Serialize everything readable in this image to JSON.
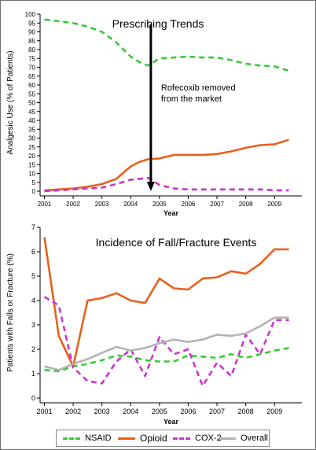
{
  "chart_data": [
    {
      "type": "line",
      "title": "Prescribing Trends",
      "xlabel": "Year",
      "ylabel": "Analgesic Use (% of Patients)",
      "ylim": [
        0,
        100
      ],
      "yticks": [
        0,
        5,
        10,
        15,
        20,
        25,
        30,
        35,
        40,
        45,
        50,
        55,
        60,
        65,
        70,
        75,
        80,
        85,
        90,
        95,
        100
      ],
      "xticks": [
        "2001",
        "2002",
        "2003",
        "2004",
        "2005",
        "2006",
        "2007",
        "2008",
        "2009"
      ],
      "annotation": {
        "text_line1": "Rofecoxib removed",
        "text_line2": "from  the market",
        "x": 2004.7
      },
      "series": [
        {
          "name": "NSAID",
          "color": "#33cc33",
          "style": "dashed",
          "x": [
            2001.0,
            2001.5,
            2002.0,
            2002.5,
            2003.0,
            2003.5,
            2004.0,
            2004.3,
            2004.6,
            2005.0,
            2005.5,
            2006.0,
            2006.5,
            2007.0,
            2007.5,
            2008.0,
            2008.5,
            2009.0,
            2009.5
          ],
          "y": [
            97,
            96,
            95,
            93,
            90,
            84,
            76,
            73,
            71,
            75,
            75.5,
            76,
            75.5,
            75.5,
            74,
            72,
            71,
            70.5,
            68
          ]
        },
        {
          "name": "Opioid",
          "color": "#e8601c",
          "style": "solid",
          "x": [
            2001.0,
            2001.5,
            2002.0,
            2002.5,
            2003.0,
            2003.5,
            2004.0,
            2004.3,
            2004.6,
            2005.0,
            2005.5,
            2006.0,
            2006.5,
            2007.0,
            2007.5,
            2008.0,
            2008.5,
            2009.0,
            2009.5
          ],
          "y": [
            0.5,
            1,
            1.5,
            2.5,
            4,
            7,
            14,
            16.5,
            18,
            18.5,
            20.5,
            20.5,
            20.5,
            21,
            22.5,
            24.5,
            26,
            26.5,
            29
          ]
        },
        {
          "name": "COX-2",
          "color": "#cc33cc",
          "style": "dashed",
          "x": [
            2001.0,
            2001.5,
            2002.0,
            2002.5,
            2003.0,
            2003.5,
            2004.0,
            2004.3,
            2004.6,
            2005.0,
            2005.5,
            2006.0,
            2006.5,
            2007.0,
            2007.5,
            2008.0,
            2008.5,
            2009.0,
            2009.5
          ],
          "y": [
            0,
            0.5,
            1,
            1.5,
            2,
            4,
            6.5,
            7,
            7.5,
            3.5,
            1.5,
            1,
            1,
            1,
            1,
            1,
            1,
            0.5,
            0.5
          ]
        }
      ]
    },
    {
      "type": "line",
      "title": "Incidence of Fall/Fracture Events",
      "xlabel": "Year",
      "ylabel": "Patients with Falls or Fracture (%)",
      "ylim": [
        0,
        7
      ],
      "yticks": [
        0,
        1,
        2,
        3,
        4,
        5,
        6,
        7
      ],
      "xticks": [
        "2001",
        "2002",
        "2003",
        "2004",
        "2005",
        "2006",
        "2007",
        "2008",
        "2009"
      ],
      "series": [
        {
          "name": "NSAID",
          "color": "#33cc33",
          "style": "dashed",
          "x": [
            2001.0,
            2001.5,
            2002.0,
            2002.5,
            2003.0,
            2003.5,
            2004.0,
            2004.5,
            2005.0,
            2005.5,
            2006.0,
            2006.5,
            2007.0,
            2007.5,
            2008.0,
            2008.5,
            2009.0,
            2009.5
          ],
          "y": [
            1.15,
            1.1,
            1.3,
            1.4,
            1.55,
            1.75,
            1.7,
            1.55,
            1.5,
            1.5,
            1.75,
            1.7,
            1.65,
            1.8,
            1.65,
            1.8,
            1.95,
            2.05
          ]
        },
        {
          "name": "Opioid",
          "color": "#e8601c",
          "style": "solid",
          "x": [
            2001.0,
            2001.5,
            2002.0,
            2002.5,
            2003.0,
            2003.5,
            2004.0,
            2004.5,
            2005.0,
            2005.5,
            2006.0,
            2006.5,
            2007.0,
            2007.5,
            2008.0,
            2008.5,
            2009.0,
            2009.5
          ],
          "y": [
            6.6,
            2.55,
            1.3,
            4.0,
            4.1,
            4.3,
            4.0,
            3.9,
            4.9,
            4.5,
            4.45,
            4.9,
            4.95,
            5.2,
            5.1,
            5.5,
            6.1,
            6.1
          ]
        },
        {
          "name": "COX-2",
          "color": "#cc33cc",
          "style": "dashed",
          "x": [
            2001.0,
            2001.5,
            2002.0,
            2002.5,
            2003.0,
            2003.5,
            2004.0,
            2004.5,
            2005.0,
            2005.5,
            2006.0,
            2006.5,
            2007.0,
            2007.5,
            2008.0,
            2008.5,
            2009.0,
            2009.5
          ],
          "y": [
            4.15,
            3.8,
            1.25,
            0.7,
            0.6,
            1.5,
            2.0,
            0.9,
            2.5,
            1.8,
            2.0,
            0.5,
            1.45,
            0.9,
            2.6,
            1.8,
            3.2,
            3.2
          ]
        },
        {
          "name": "Overall",
          "color": "#b3b3b3",
          "style": "solid",
          "x": [
            2001.0,
            2001.5,
            2002.0,
            2002.5,
            2003.0,
            2003.5,
            2004.0,
            2004.5,
            2005.0,
            2005.5,
            2006.0,
            2006.5,
            2007.0,
            2007.5,
            2008.0,
            2008.5,
            2009.0,
            2009.5
          ],
          "y": [
            1.3,
            1.15,
            1.4,
            1.6,
            1.85,
            2.1,
            1.95,
            2.05,
            2.25,
            2.4,
            2.3,
            2.4,
            2.6,
            2.55,
            2.65,
            2.95,
            3.3,
            3.3
          ]
        }
      ]
    }
  ],
  "legend": [
    {
      "name": "NSAID",
      "color": "#33cc33",
      "style": "dashed"
    },
    {
      "name": "Opioid",
      "color": "#e8601c",
      "style": "solid"
    },
    {
      "name": "COX-2",
      "color": "#cc33cc",
      "style": "dashed"
    },
    {
      "name": "Overall",
      "color": "#b3b3b3",
      "style": "solid"
    }
  ]
}
